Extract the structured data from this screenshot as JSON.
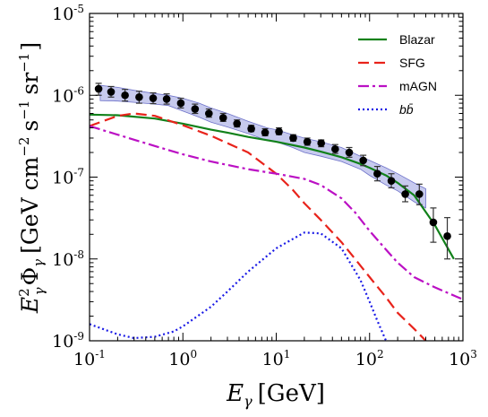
{
  "chart_data": {
    "type": "line",
    "x_scale": "log",
    "y_scale": "log",
    "xlim": [
      0.1,
      1000
    ],
    "ylim": [
      1e-09,
      1e-05
    ],
    "grid": false,
    "legend_position": "top-right",
    "x_ticks": [
      {
        "base": "10",
        "exp": "-1",
        "value": 0.1
      },
      {
        "base": "10",
        "exp": "0",
        "value": 1
      },
      {
        "base": "10",
        "exp": "1",
        "value": 10
      },
      {
        "base": "10",
        "exp": "2",
        "value": 100
      },
      {
        "base": "10",
        "exp": "3",
        "value": 1000
      }
    ],
    "y_ticks": [
      {
        "base": "10",
        "exp": "-9",
        "value": 1e-09
      },
      {
        "base": "10",
        "exp": "-8",
        "value": 1e-08
      },
      {
        "base": "10",
        "exp": "-7",
        "value": 1e-07
      },
      {
        "base": "10",
        "exp": "-6",
        "value": 1e-06
      },
      {
        "base": "10",
        "exp": "-5",
        "value": 1e-05
      }
    ],
    "xlabel": {
      "symbol": "E",
      "sub": "γ",
      "unit": "[GeV]"
    },
    "ylabel": {
      "prefix": "E",
      "prefix_sup": "2",
      "prefix_sub": "γ",
      "symbol": "Φ",
      "symbol_sub": "γ",
      "unit_open": "[GeV cm",
      "cm_exp": "−2",
      "s_text": "s",
      "s_exp": "−1",
      "sr_text": "sr",
      "sr_exp": "−1",
      "unit_close": "]"
    },
    "series": [
      {
        "name": "Blazar",
        "color": "#11811a",
        "dash": "solid",
        "x": [
          0.1,
          0.2,
          0.5,
          1,
          2,
          3,
          5,
          10,
          20,
          30,
          50,
          80,
          100,
          150,
          200,
          300,
          500,
          800
        ],
        "y": [
          5.8e-07,
          5.7e-07,
          5.2e-07,
          4.5e-07,
          3.8e-07,
          3.5e-07,
          3.1e-07,
          2.7e-07,
          2.3e-07,
          2.05e-07,
          1.75e-07,
          1.45e-07,
          1.3e-07,
          1.05e-07,
          8.5e-08,
          6e-08,
          2.6e-08,
          1e-08
        ]
      },
      {
        "name": "SFG",
        "color": "#e8231b",
        "dash": "dashed",
        "x": [
          0.1,
          0.2,
          0.3,
          0.5,
          1,
          2,
          5,
          10,
          15,
          20,
          30,
          50,
          70,
          100,
          150,
          200,
          300,
          400
        ],
        "y": [
          4.2e-07,
          5.6e-07,
          6e-07,
          5.6e-07,
          4.3e-07,
          3.2e-07,
          2e-07,
          1.1e-07,
          7e-08,
          4.8e-08,
          3e-08,
          1.6e-08,
          1e-08,
          6e-09,
          3.4e-09,
          2.2e-09,
          1.4e-09,
          1e-09
        ]
      },
      {
        "name": "mAGN",
        "color": "#bb10c4",
        "dash": "dashdot",
        "x": [
          0.1,
          0.2,
          0.5,
          1,
          2,
          5,
          10,
          20,
          30,
          50,
          70,
          100,
          150,
          200,
          300,
          500,
          1000
        ],
        "y": [
          4.2e-07,
          3.3e-07,
          2.4e-07,
          1.9e-07,
          1.55e-07,
          1.25e-07,
          1.1e-07,
          9.5e-08,
          8e-08,
          5.5e-08,
          3.7e-08,
          2.2e-08,
          1.3e-08,
          9e-09,
          6e-09,
          4.5e-09,
          3.2e-09
        ]
      },
      {
        "name": "bb̄",
        "color": "#1a1ae6",
        "dash": "dotted",
        "x": [
          0.1,
          0.15,
          0.2,
          0.3,
          0.5,
          0.8,
          1,
          2,
          3,
          5,
          10,
          20,
          30,
          50,
          80,
          100,
          120,
          150
        ],
        "y": [
          1.6e-09,
          1.35e-09,
          1.2e-09,
          1.08e-09,
          1.12e-09,
          1.3e-09,
          1.5e-09,
          2.6e-09,
          4e-09,
          7e-09,
          1.35e-08,
          2.1e-08,
          2.05e-08,
          1.35e-08,
          5.5e-09,
          3e-09,
          1.8e-09,
          1e-09
        ]
      }
    ],
    "band": {
      "color": "#b4b8e8",
      "x": [
        0.13,
        0.2,
        0.3,
        0.5,
        0.7,
        1,
        1.5,
        2,
        3,
        5,
        8,
        10,
        15,
        20,
        30,
        50,
        80,
        100,
        150,
        200,
        300,
        400
      ],
      "y_low": [
        8.6e-07,
        8.5e-07,
        8.2e-07,
        7.8e-07,
        7.5e-07,
        6.4e-07,
        5.4e-07,
        4.7e-07,
        4.1e-07,
        3.4e-07,
        2.8e-07,
        2.7e-07,
        2.3e-07,
        2e-07,
        1.8e-07,
        1.55e-07,
        1.25e-07,
        1.05e-07,
        8e-08,
        6.8e-08,
        5e-08,
        4.2e-08
      ],
      "y_high": [
        1.32e-06,
        1.25e-06,
        1.15e-06,
        1.05e-06,
        1e-06,
        9.2e-07,
        8e-07,
        7e-07,
        6e-07,
        4.8e-07,
        4e-07,
        3.8e-07,
        3.3e-07,
        3e-07,
        2.7e-07,
        2.3e-07,
        1.8e-07,
        1.6e-07,
        1.3e-07,
        1.1e-07,
        8.5e-08,
        7.2e-08
      ]
    },
    "points": {
      "color": "#000000",
      "x": [
        0.125,
        0.17,
        0.24,
        0.34,
        0.48,
        0.67,
        0.95,
        1.35,
        1.9,
        2.7,
        3.8,
        5.4,
        7.6,
        10.7,
        15.2,
        21.5,
        30.3,
        42.8,
        60.5,
        85.5,
        121,
        171,
        241,
        341,
        482,
        680
      ],
      "y": [
        1.2e-06,
        1.1e-06,
        1e-06,
        9.5e-07,
        9.2e-07,
        9e-07,
        8e-07,
        6.8e-07,
        6e-07,
        5.3e-07,
        4.5e-07,
        3.9e-07,
        3.5e-07,
        3.6e-07,
        3e-07,
        2.7e-07,
        2.6e-07,
        2.2e-07,
        2e-07,
        1.6e-07,
        1.1e-07,
        9e-08,
        6.2e-08,
        6.2e-08,
        2.8e-08,
        1.9e-08
      ],
      "err_low": [
        1e-06,
        9.5e-07,
        8.5e-07,
        8e-07,
        7.9e-07,
        7.8e-07,
        7e-07,
        6e-07,
        5.4e-07,
        4.8e-07,
        4.1e-07,
        3.6e-07,
        3.2e-07,
        3.3e-07,
        2.75e-07,
        2.45e-07,
        2.35e-07,
        1.95e-07,
        1.75e-07,
        1.38e-07,
        9e-08,
        7.4e-08,
        5e-08,
        4.6e-08,
        1.6e-08,
        1e-08
      ],
      "err_high": [
        1.4e-06,
        1.28e-06,
        1.18e-06,
        1.12e-06,
        1.07e-06,
        1.04e-06,
        9.2e-07,
        7.8e-07,
        6.8e-07,
        6e-07,
        5e-07,
        4.3e-07,
        3.9e-07,
        4e-07,
        3.3e-07,
        3e-07,
        2.85e-07,
        2.5e-07,
        2.3e-07,
        1.85e-07,
        1.35e-07,
        1.1e-07,
        7.8e-08,
        8.2e-08,
        4.2e-08,
        3.2e-08
      ]
    }
  }
}
